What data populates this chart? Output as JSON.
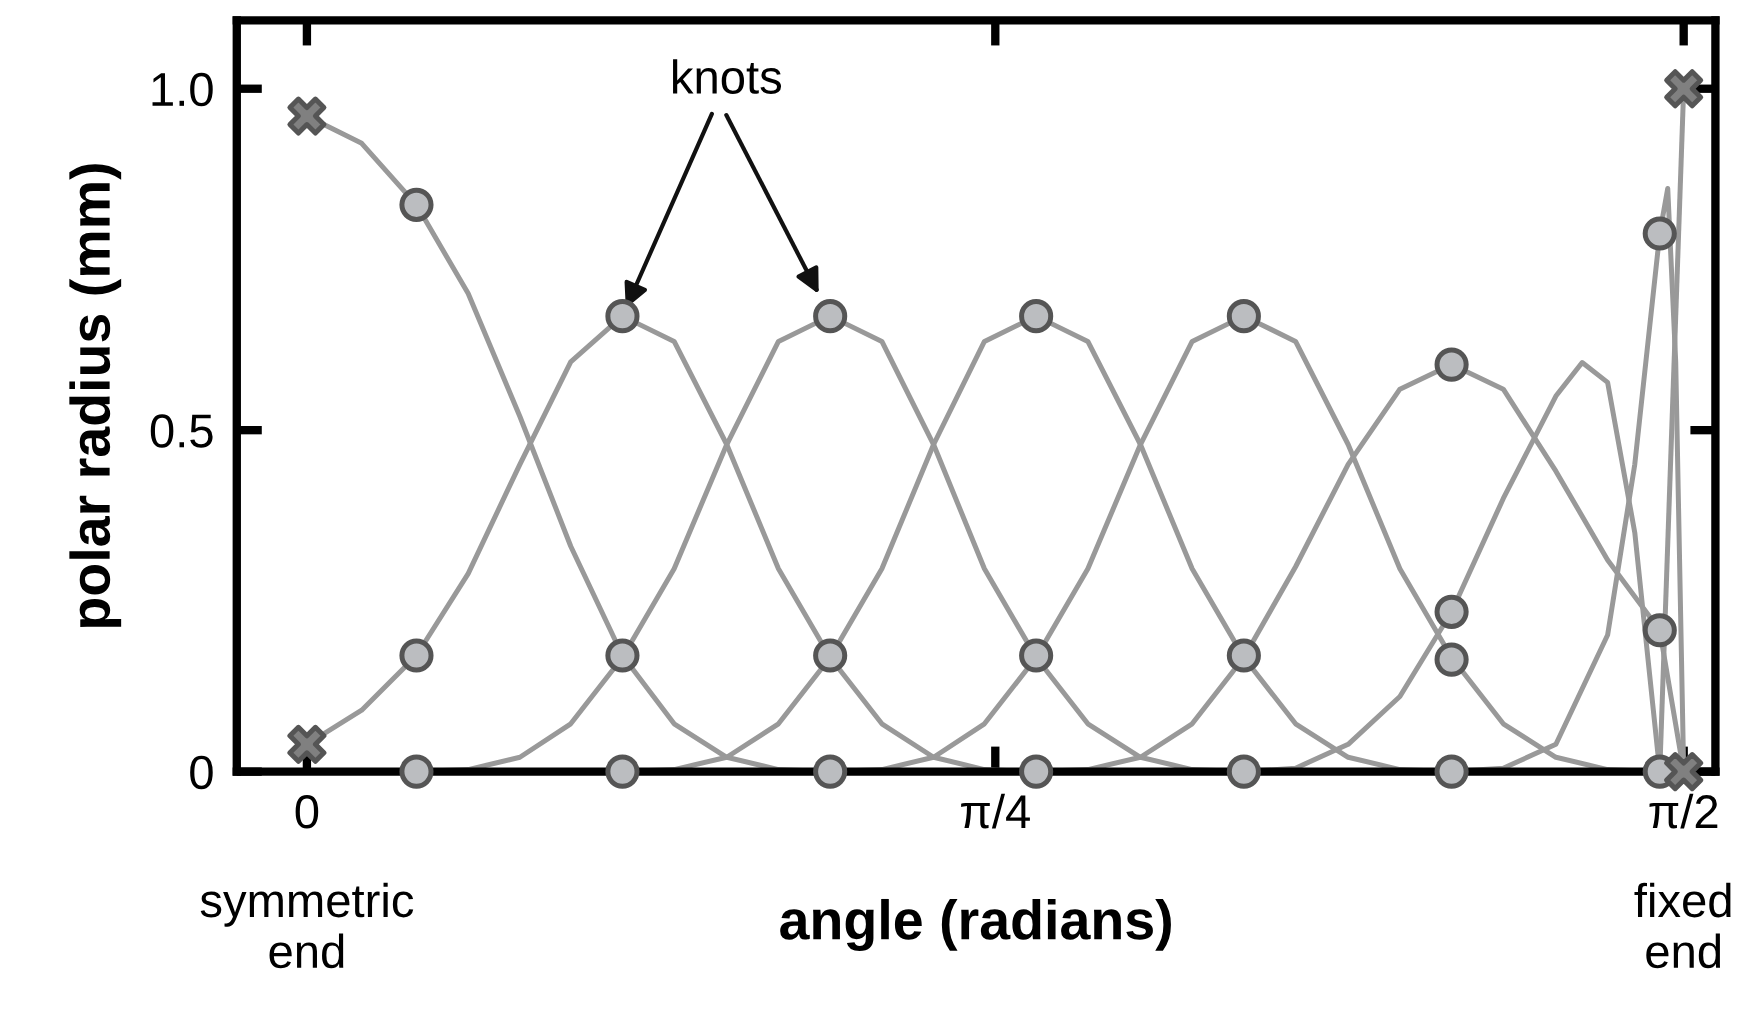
{
  "chart_data": {
    "type": "line",
    "xlabel": "angle (radians)",
    "ylabel": "polar radius (mm)",
    "xlim": [
      -0.08,
      1.607
    ],
    "ylim": [
      0,
      1.1
    ],
    "xticks": [
      0,
      {
        "value": 0.7854,
        "label": "π/4"
      },
      {
        "value": 1.5708,
        "label": "π/2"
      }
    ],
    "yticks": [
      0,
      0.5,
      {
        "value": 1.0,
        "label": "1.0"
      }
    ],
    "grid": false,
    "legend": false,
    "marker": "none",
    "line_style": "solid",
    "series": [
      {
        "color": "#999999",
        "x": [
          0,
          0.0625,
          0.125,
          0.184,
          0.243,
          0.301,
          0.36,
          0.419,
          0.479,
          0.538,
          0.597
        ],
        "values": [
          0.96,
          0.92,
          0.83,
          0.7,
          0.52,
          0.33,
          0.17,
          0.07,
          0.021,
          0.003,
          0
        ]
      },
      {
        "color": "#999999",
        "x": [
          0,
          0.0625,
          0.125,
          0.184,
          0.243,
          0.301,
          0.36,
          0.419,
          0.479,
          0.538,
          0.597,
          0.656,
          0.715,
          0.773,
          0.832
        ],
        "values": [
          0.04,
          0.09,
          0.17,
          0.29,
          0.45,
          0.6,
          0.667,
          0.63,
          0.479,
          0.297,
          0.167,
          0.07,
          0.021,
          0.003,
          0
        ]
      },
      {
        "color": "#999999",
        "x": [
          0.125,
          0.184,
          0.243,
          0.301,
          0.36,
          0.419,
          0.479,
          0.538,
          0.597,
          0.656,
          0.715,
          0.773,
          0.832,
          0.891,
          0.951,
          1.01,
          1.069
        ],
        "values": [
          0,
          0.003,
          0.021,
          0.07,
          0.167,
          0.297,
          0.479,
          0.63,
          0.667,
          0.63,
          0.479,
          0.297,
          0.167,
          0.07,
          0.021,
          0.003,
          0
        ]
      },
      {
        "color": "#999999",
        "x": [
          0.36,
          0.419,
          0.479,
          0.538,
          0.597,
          0.656,
          0.715,
          0.773,
          0.832,
          0.891,
          0.951,
          1.01,
          1.069,
          1.128,
          1.188,
          1.247,
          1.306
        ],
        "values": [
          0,
          0.003,
          0.021,
          0.07,
          0.167,
          0.297,
          0.479,
          0.63,
          0.667,
          0.63,
          0.479,
          0.297,
          0.167,
          0.07,
          0.021,
          0.003,
          0
        ]
      },
      {
        "color": "#999999",
        "x": [
          0.597,
          0.656,
          0.715,
          0.773,
          0.832,
          0.891,
          0.951,
          1.01,
          1.069,
          1.128,
          1.188,
          1.247,
          1.306,
          1.365,
          1.425,
          1.484,
          1.5435
        ],
        "values": [
          0,
          0.003,
          0.021,
          0.07,
          0.167,
          0.297,
          0.479,
          0.63,
          0.667,
          0.63,
          0.479,
          0.297,
          0.167,
          0.07,
          0.021,
          0.003,
          0
        ]
      },
      {
        "color": "#999999",
        "x": [
          0.832,
          0.891,
          0.951,
          1.01,
          1.069,
          1.128,
          1.188,
          1.247,
          1.306,
          1.365,
          1.425,
          1.484,
          1.5435,
          1.5708
        ],
        "values": [
          0,
          0.003,
          0.021,
          0.07,
          0.167,
          0.3,
          0.45,
          0.56,
          0.596,
          0.56,
          0.44,
          0.31,
          0.207,
          0
        ]
      },
      {
        "color": "#999999",
        "x": [
          1.069,
          1.128,
          1.188,
          1.247,
          1.306,
          1.365,
          1.425,
          1.455,
          1.484,
          1.515,
          1.5435
        ],
        "values": [
          0,
          0.005,
          0.04,
          0.11,
          0.234,
          0.4,
          0.55,
          0.599,
          0.57,
          0.35,
          0
        ]
      },
      {
        "color": "#999999",
        "x": [
          1.306,
          1.365,
          1.425,
          1.484,
          1.515,
          1.5435,
          1.5526,
          1.5617,
          1.5708
        ],
        "values": [
          0,
          0.005,
          0.04,
          0.2,
          0.45,
          0.788,
          0.854,
          0.6,
          0
        ]
      },
      {
        "color": "#999999",
        "x": [
          1.5435,
          1.5708
        ],
        "values": [
          0,
          1.0
        ]
      },
      {
        "type": "scatter",
        "marker": "circle",
        "color": "#bbbdc0",
        "x": [
          0.125,
          0.125,
          0.125,
          0.36,
          0.36,
          0.36,
          0.597,
          0.597,
          0.597,
          0.832,
          0.832,
          0.832,
          1.069,
          1.069,
          1.069,
          1.306,
          1.306,
          1.306,
          1.306,
          1.5435,
          1.5435,
          1.5435
        ],
        "values": [
          0.83,
          0.17,
          0,
          0.667,
          0.17,
          0,
          0.667,
          0.17,
          0,
          0.667,
          0.17,
          0,
          0.667,
          0.17,
          0,
          0.596,
          0.234,
          0.164,
          0,
          0.788,
          0.207,
          0
        ]
      },
      {
        "type": "scatter",
        "marker": "cross",
        "color": "#808080",
        "x": [
          0,
          0,
          1.5708,
          1.5708
        ],
        "values": [
          0.96,
          0.04,
          1.0,
          0
        ]
      }
    ],
    "annotations": [
      {
        "text": "knots",
        "x": 0.36,
        "y": 0.667
      },
      "symmetric\nend",
      "fixed\nend"
    ]
  }
}
